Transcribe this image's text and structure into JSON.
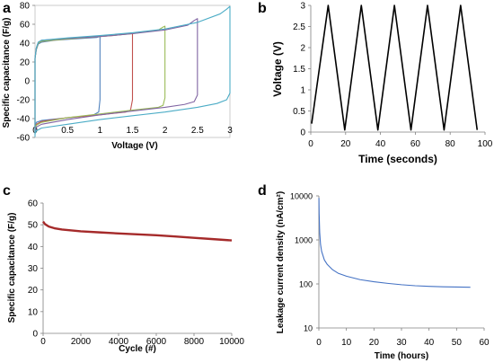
{
  "chart_data": [
    {
      "panel": "a",
      "type": "line",
      "xlabel": "Voltage (V)",
      "ylabel": "Specific capacitance (F/g)",
      "xlim": [
        0,
        3
      ],
      "ylim": [
        -60,
        80
      ],
      "xticks": [
        "0",
        "0.5",
        "1",
        "1.5",
        "2",
        "2.5",
        "3"
      ],
      "yticks": [
        "-60",
        "-40",
        "-20",
        "0",
        "20",
        "40",
        "60",
        "80"
      ],
      "grid": false,
      "series": [
        {
          "color": "#4f81bd",
          "vmax": 1.0,
          "points": [
            [
              0,
              -55
            ],
            [
              0,
              24
            ],
            [
              0.02,
              33
            ],
            [
              0.05,
              39
            ],
            [
              0.1,
              41
            ],
            [
              0.3,
              43
            ],
            [
              0.6,
              44.5
            ],
            [
              0.95,
              46
            ],
            [
              1.0,
              47
            ],
            [
              1.0,
              -20
            ],
            [
              0.98,
              -33
            ],
            [
              0.9,
              -36
            ],
            [
              0.6,
              -38.5
            ],
            [
              0.3,
              -40.5
            ],
            [
              0.1,
              -42
            ],
            [
              0.02,
              -44
            ],
            [
              0,
              -48
            ]
          ]
        },
        {
          "color": "#c0504d",
          "vmax": 1.5,
          "points": [
            [
              0,
              -55
            ],
            [
              0,
              24
            ],
            [
              0.02,
              34
            ],
            [
              0.05,
              40
            ],
            [
              0.1,
              42
            ],
            [
              0.4,
              44
            ],
            [
              0.8,
              46
            ],
            [
              1.2,
              48
            ],
            [
              1.45,
              50
            ],
            [
              1.5,
              50
            ],
            [
              1.5,
              -20
            ],
            [
              1.47,
              -31
            ],
            [
              1.4,
              -33
            ],
            [
              1.0,
              -36
            ],
            [
              0.5,
              -39
            ],
            [
              0.1,
              -43
            ],
            [
              0.02,
              -46
            ],
            [
              0,
              -50
            ]
          ]
        },
        {
          "color": "#9bbb59",
          "vmax": 2.0,
          "points": [
            [
              0,
              -56
            ],
            [
              0,
              24
            ],
            [
              0.02,
              34
            ],
            [
              0.05,
              40
            ],
            [
              0.1,
              42
            ],
            [
              0.5,
              44.5
            ],
            [
              1.0,
              47
            ],
            [
              1.5,
              50
            ],
            [
              1.9,
              54
            ],
            [
              1.97,
              57
            ],
            [
              2.0,
              58
            ],
            [
              2.0,
              -18
            ],
            [
              1.97,
              -26
            ],
            [
              1.9,
              -28
            ],
            [
              1.5,
              -31
            ],
            [
              1.0,
              -35
            ],
            [
              0.5,
              -39
            ],
            [
              0.1,
              -44
            ],
            [
              0.02,
              -47
            ],
            [
              0,
              -52
            ]
          ]
        },
        {
          "color": "#8064a2",
          "vmax": 2.5,
          "points": [
            [
              0,
              -57
            ],
            [
              0,
              24
            ],
            [
              0.02,
              35
            ],
            [
              0.05,
              41
            ],
            [
              0.1,
              43
            ],
            [
              0.5,
              45
            ],
            [
              1.0,
              47
            ],
            [
              1.5,
              50
            ],
            [
              2.0,
              54
            ],
            [
              2.35,
              59
            ],
            [
              2.45,
              64
            ],
            [
              2.5,
              66
            ],
            [
              2.5,
              -15
            ],
            [
              2.45,
              -22
            ],
            [
              2.3,
              -25
            ],
            [
              2.0,
              -28
            ],
            [
              1.5,
              -32
            ],
            [
              1.0,
              -36
            ],
            [
              0.5,
              -41
            ],
            [
              0.1,
              -46
            ],
            [
              0.02,
              -49
            ],
            [
              0,
              -54
            ]
          ]
        },
        {
          "color": "#4bacc6",
          "vmax": 3.0,
          "points": [
            [
              0,
              -59
            ],
            [
              0,
              24
            ],
            [
              0.02,
              35
            ],
            [
              0.05,
              41
            ],
            [
              0.1,
              43
            ],
            [
              0.5,
              45.5
            ],
            [
              1.0,
              48
            ],
            [
              1.5,
              51
            ],
            [
              2.0,
              55
            ],
            [
              2.5,
              62
            ],
            [
              2.85,
              71
            ],
            [
              2.95,
              76
            ],
            [
              3.0,
              79
            ],
            [
              3.0,
              -13
            ],
            [
              2.95,
              -20
            ],
            [
              2.8,
              -24
            ],
            [
              2.5,
              -28
            ],
            [
              2.0,
              -33
            ],
            [
              1.5,
              -37
            ],
            [
              1.0,
              -41
            ],
            [
              0.5,
              -46
            ],
            [
              0.1,
              -50
            ],
            [
              0.02,
              -53
            ],
            [
              0,
              -56
            ]
          ]
        }
      ]
    },
    {
      "panel": "b",
      "type": "line",
      "xlabel": "Time (seconds)",
      "ylabel": "Voltage (V)",
      "xlim": [
        0,
        100
      ],
      "ylim": [
        0,
        3
      ],
      "xticks": [
        "0",
        "20",
        "40",
        "60",
        "80",
        "100"
      ],
      "yticks": [
        "0",
        "0.5",
        "1",
        "1.5",
        "2",
        "2.5",
        "3"
      ],
      "grid": false,
      "series": [
        {
          "color": "#000000",
          "x": [
            0.5,
            10,
            19.5,
            29,
            38.5,
            48,
            57.5,
            67,
            76.5,
            86,
            95.5
          ],
          "y": [
            0.2,
            3,
            0.05,
            3,
            0.05,
            3,
            0.05,
            3,
            0.05,
            3,
            0.05
          ]
        }
      ]
    },
    {
      "panel": "c",
      "type": "line",
      "xlabel": "Cycle (#)",
      "ylabel": "Specific capacitance (F/g)",
      "xlim": [
        0,
        10000
      ],
      "ylim": [
        0,
        60
      ],
      "xticks": [
        "0",
        "2000",
        "4000",
        "6000",
        "8000",
        "10000"
      ],
      "yticks": [
        "0",
        "10",
        "20",
        "30",
        "40",
        "50",
        "60"
      ],
      "grid": false,
      "series": [
        {
          "color": "#a52a2a",
          "x": [
            0,
            100,
            300,
            600,
            1000,
            2000,
            3000,
            4000,
            5000,
            6000,
            7000,
            8000,
            9000,
            10000
          ],
          "y": [
            51.5,
            50.3,
            49.2,
            48.4,
            47.8,
            47.0,
            46.5,
            46.0,
            45.6,
            45.2,
            44.6,
            44.0,
            43.4,
            42.8
          ]
        }
      ]
    },
    {
      "panel": "d",
      "type": "line",
      "xlabel": "Time (hours)",
      "ylabel": "Leakage current density (nA/cm²)",
      "xscale": "linear",
      "yscale": "log",
      "xlim": [
        0,
        60
      ],
      "ylim": [
        10,
        10000
      ],
      "xticks": [
        "0",
        "10",
        "20",
        "30",
        "40",
        "50",
        "60"
      ],
      "yticks": [
        "10",
        "100",
        "1000",
        "10000"
      ],
      "grid": false,
      "series": [
        {
          "color": "#4472c4",
          "x": [
            0.03,
            0.1,
            0.3,
            0.6,
            1,
            2,
            3,
            5,
            7,
            10,
            15,
            20,
            25,
            30,
            35,
            40,
            45,
            50,
            55
          ],
          "y": [
            9000,
            4000,
            1500,
            800,
            550,
            350,
            280,
            210,
            175,
            150,
            125,
            112,
            103,
            96,
            91,
            88,
            86,
            85,
            84
          ]
        }
      ]
    }
  ]
}
